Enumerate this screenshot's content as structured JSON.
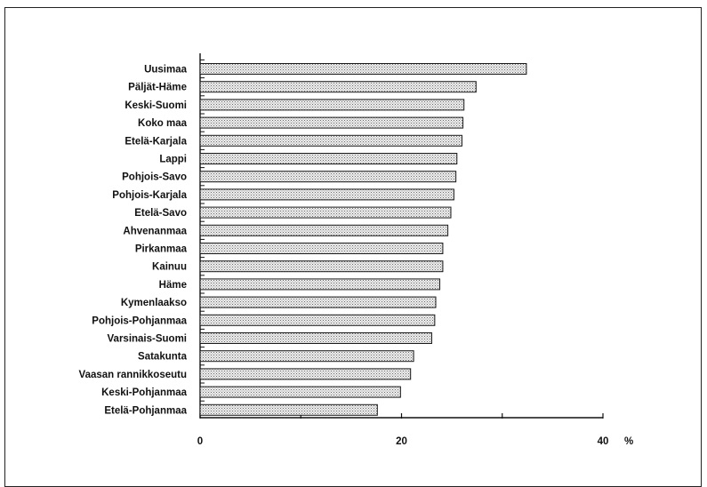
{
  "chart_data": {
    "type": "bar",
    "orientation": "horizontal",
    "categories": [
      "Uusimaa",
      "Päljät-Häme",
      "Keski-Suomi",
      "Koko maa",
      "Etelä-Karjala",
      "Lappi",
      "Pohjois-Savo",
      "Pohjois-Karjala",
      "Etelä-Savo",
      "Ahvenanmaa",
      "Pirkanmaa",
      "Kainuu",
      "Häme",
      "Kymenlaakso",
      "Pohjois-Pohjanmaa",
      "Varsinais-Suomi",
      "Satakunta",
      "Vaasan rannikkoseutu",
      "Keski-Pohjanmaa",
      "Etelä-Pohjanmaa"
    ],
    "values": [
      32.4,
      27.4,
      26.2,
      26.1,
      26.0,
      25.5,
      25.4,
      25.2,
      24.9,
      24.6,
      24.1,
      24.1,
      23.8,
      23.4,
      23.3,
      23.0,
      21.2,
      20.9,
      19.9,
      17.6
    ],
    "xlim": [
      0,
      40
    ],
    "xticks": [
      "0",
      "20",
      "40"
    ],
    "minor_tick_step": 10,
    "unit_label": "%",
    "bar_fill": "#d9d9d9",
    "bar_stroke": "#1a1a1a"
  }
}
